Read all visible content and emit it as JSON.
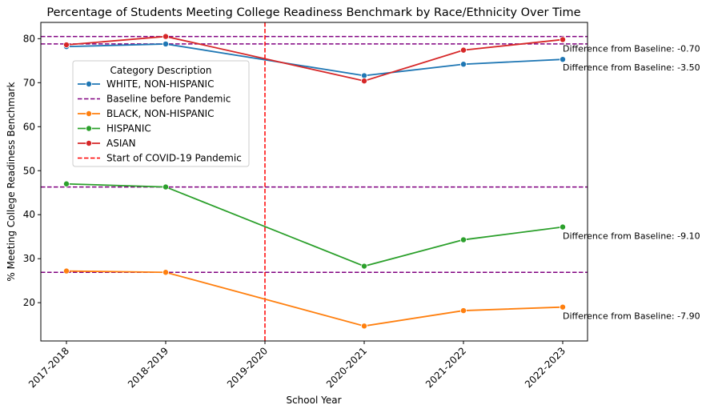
{
  "chart_data": {
    "type": "line",
    "title": "Percentage of Students Meeting College Readiness Benchmark by Race/Ethnicity Over Time",
    "xlabel": "School Year",
    "ylabel": "% Meeting College Readiness Benchmark",
    "categories": [
      "2017-2018",
      "2018-2019",
      "2019-2020",
      "2020-2021",
      "2021-2022",
      "2022-2023"
    ],
    "ylim": [
      11.3,
      83.7
    ],
    "yticks": [
      20,
      30,
      40,
      50,
      60,
      70,
      80
    ],
    "grid": false,
    "legend": {
      "title": "Category Description",
      "placement": "upper-left",
      "entries": [
        {
          "label": "WHITE, NON-HISPANIC",
          "style": "line-marker",
          "color": "#1f77b4"
        },
        {
          "label": "Baseline before Pandemic",
          "style": "dashed",
          "color": "#800080"
        },
        {
          "label": "BLACK, NON-HISPANIC",
          "style": "line-marker",
          "color": "#ff7f0e"
        },
        {
          "label": "HISPANIC",
          "style": "line-marker",
          "color": "#2ca02c"
        },
        {
          "label": "ASIAN",
          "style": "line-marker",
          "color": "#d62728"
        },
        {
          "label": "Start of COVID-19 Pandemic",
          "style": "dashed",
          "color": "#ff0000"
        }
      ]
    },
    "series": [
      {
        "name": "WHITE, NON-HISPANIC",
        "color": "#1f77b4",
        "values": [
          78.2,
          78.8,
          null,
          71.6,
          74.2,
          75.3
        ]
      },
      {
        "name": "BLACK, NON-HISPANIC",
        "color": "#ff7f0e",
        "values": [
          27.2,
          26.9,
          null,
          14.7,
          18.2,
          19.0
        ]
      },
      {
        "name": "HISPANIC",
        "color": "#2ca02c",
        "values": [
          47.0,
          46.3,
          null,
          28.3,
          34.3,
          37.2
        ]
      },
      {
        "name": "ASIAN",
        "color": "#d62728",
        "values": [
          78.6,
          80.5,
          null,
          70.4,
          77.4,
          79.8
        ]
      }
    ],
    "baselines": [
      {
        "value": 80.5,
        "color": "#800080"
      },
      {
        "value": 78.8,
        "color": "#800080"
      },
      {
        "value": 46.3,
        "color": "#800080"
      },
      {
        "value": 26.9,
        "color": "#800080"
      }
    ],
    "vline": {
      "category": "2019-2020",
      "color": "#ff0000"
    },
    "annotations": [
      {
        "text": "Difference from Baseline: -0.70",
        "y": 77.8
      },
      {
        "text": "Difference from Baseline: -3.50",
        "y": 73.5
      },
      {
        "text": "Difference from Baseline: -9.10",
        "y": 35.2
      },
      {
        "text": "Difference from Baseline: -7.90",
        "y": 17.0
      }
    ]
  }
}
